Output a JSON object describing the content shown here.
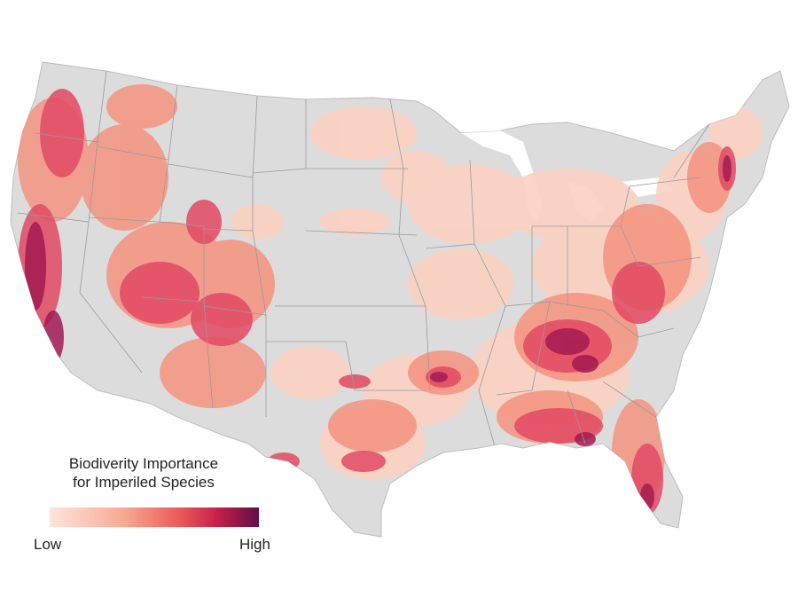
{
  "legend": {
    "title_line1": "Biodiverity Importance",
    "title_line2": "for Imperiled Species",
    "low_label": "Low",
    "high_label": "High",
    "gradient_colors": [
      "#fde5dc",
      "#f6aa94",
      "#ec5a58",
      "#c8204a",
      "#5e0f44"
    ]
  },
  "colors": {
    "land": "#dcdcdc",
    "borders": "#9a9a9a",
    "low": "#fbd1c1",
    "medium": "#f4937f",
    "high": "#e24963",
    "very_high": "#a31b52"
  }
}
